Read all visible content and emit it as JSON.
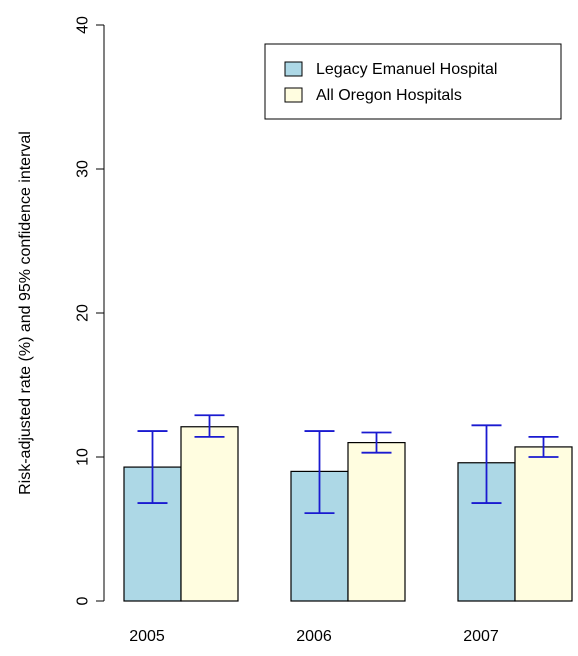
{
  "chart_data": {
    "type": "bar",
    "title": "",
    "xlabel": "",
    "ylabel": "Risk-adjusted rate (%) and 95% confidence interval",
    "ylim": [
      0,
      40
    ],
    "yticks": [
      0,
      10,
      20,
      30,
      40
    ],
    "categories": [
      "2005",
      "2006",
      "2007"
    ],
    "legend_position": "top-right",
    "grid": false,
    "series": [
      {
        "name": "Legacy Emanuel Hospital",
        "color": "#add8e6",
        "values": [
          9.3,
          9.0,
          9.6
        ],
        "ci_low": [
          6.8,
          6.1,
          6.8
        ],
        "ci_high": [
          11.8,
          11.8,
          12.2
        ]
      },
      {
        "name": "All Oregon Hospitals",
        "color": "#fffde0",
        "values": [
          12.1,
          11.0,
          10.7
        ],
        "ci_low": [
          11.4,
          10.3,
          10.0
        ],
        "ci_high": [
          12.9,
          11.7,
          11.4
        ]
      }
    ],
    "error_bar_color": "#1a1ad0"
  }
}
